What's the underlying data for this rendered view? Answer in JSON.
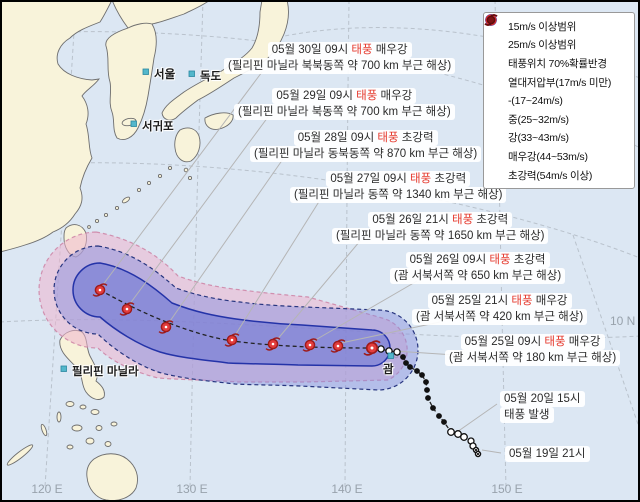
{
  "colors": {
    "sea": "#dce7f3",
    "land": "#f8f3da",
    "prob70_fill": "#eec3d6",
    "range15_fill": "#8f99e0",
    "range25_fill": "#6a76d8",
    "typhoon_red": "#e23d3d",
    "storm_text_red": "#e5372b",
    "track_black": "#222222",
    "city_marker_teal": "#53b7cb"
  },
  "legend": {
    "items": [
      {
        "icon": "range15-icon",
        "label": "15m/s 이상범위"
      },
      {
        "icon": "range25-icon",
        "label": "25m/s 이상범위"
      },
      {
        "icon": "prob70-icon",
        "label": "태풍위치 70%확률반경"
      },
      {
        "icon": "tropical-depression-icon",
        "label": "열대저압부(17m/s 미만)"
      },
      {
        "icon": "typhoon-weak-icon",
        "label": "-(17~24m/s)"
      },
      {
        "icon": "typhoon-mid-icon",
        "label": "중(25~32m/s)"
      },
      {
        "icon": "typhoon-strong-icon",
        "label": "강(33~43m/s)"
      },
      {
        "icon": "typhoon-verystrong-icon",
        "label": "매우강(44~53m/s)"
      },
      {
        "icon": "typhoon-super-icon",
        "label": "초강력(54m/s 이상)"
      }
    ]
  },
  "annotations": [
    {
      "date": "05월 30일 09시",
      "storm": "태풍",
      "strength": "매우강",
      "line2": "(필리핀 마닐라 북북동쪽 약 700 km 부근 해상)"
    },
    {
      "date": "05월 29일 09시",
      "storm": "태풍",
      "strength": "매우강",
      "line2": "(필리핀 마닐라 북동쪽 약 700 km 부근 해상)"
    },
    {
      "date": "05월 28일 09시",
      "storm": "태풍",
      "strength": "초강력",
      "line2": "(필리핀 마닐라 동북동쪽 약 870 km 부근 해상)"
    },
    {
      "date": "05월 27일 09시",
      "storm": "태풍",
      "strength": "초강력",
      "line2": "(필리핀 마닐라 동쪽 약 1340 km 부근 해상)"
    },
    {
      "date": "05월 26일 21시",
      "storm": "태풍",
      "strength": "초강력",
      "line2": "(필리핀 마닐라 동쪽 약 1650 km 부근 해상)"
    },
    {
      "date": "05월 26일 09시",
      "storm": "태풍",
      "strength": "초강력",
      "line2": "(괌 서북서쪽 약 650 km 부근 해상)"
    },
    {
      "date": "05월 25일 21시",
      "storm": "태풍",
      "strength": "매우강",
      "line2": "(괌 서북서쪽 약 420 km 부근 해상)"
    },
    {
      "date": "05월 25일 09시",
      "storm": "태풍",
      "strength": "매우강",
      "line2": "(괌 서북서쪽 약 180 km 부근 해상)"
    },
    {
      "date": "05월 20일 15시",
      "line2": "태풍 발생"
    },
    {
      "date": "05월 19일 21시"
    }
  ],
  "map": {
    "city_labels": [
      {
        "id": "seoul",
        "text": "서울"
      },
      {
        "id": "dokdo",
        "text": "독도"
      },
      {
        "id": "seogwipo",
        "text": "서귀포"
      },
      {
        "id": "manila",
        "text": "필리핀 마닐라"
      },
      {
        "id": "guam",
        "text": "괌"
      }
    ],
    "axis_labels": [
      {
        "id": "lon-120",
        "text": "120 E"
      },
      {
        "id": "lon-130",
        "text": "130 E"
      },
      {
        "id": "lon-140",
        "text": "140 E"
      },
      {
        "id": "lon-150",
        "text": "150 E"
      },
      {
        "id": "lat-10",
        "text": "10 N"
      }
    ]
  }
}
